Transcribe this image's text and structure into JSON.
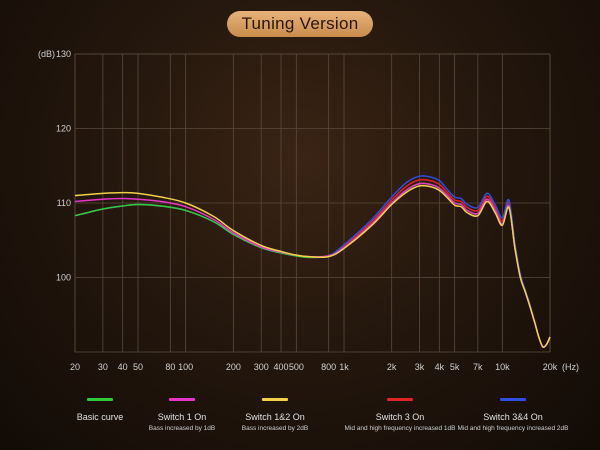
{
  "header": {
    "title": "Tuning Version"
  },
  "chart_data": {
    "type": "line",
    "title": "Tuning Version",
    "ylabel": "(dB)",
    "xlabel": "(Hz)",
    "xscale": "log",
    "xlim": [
      20,
      20000
    ],
    "ylim": [
      90,
      130
    ],
    "grid": true,
    "y_ticks": [
      {
        "value": 130,
        "label": "130"
      },
      {
        "value": 120,
        "label": "120"
      },
      {
        "value": 110,
        "label": "110"
      },
      {
        "value": 100,
        "label": "100"
      }
    ],
    "x_ticks": [
      {
        "value": 20,
        "label": "20"
      },
      {
        "value": 30,
        "label": "30"
      },
      {
        "value": 40,
        "label": "40"
      },
      {
        "value": 50,
        "label": "50"
      },
      {
        "value": 80,
        "label": "80"
      },
      {
        "value": 100,
        "label": "100"
      },
      {
        "value": 200,
        "label": "200"
      },
      {
        "value": 300,
        "label": "300"
      },
      {
        "value": 400,
        "label": "400"
      },
      {
        "value": 500,
        "label": "500"
      },
      {
        "value": 800,
        "label": "800"
      },
      {
        "value": 1000,
        "label": "1k"
      },
      {
        "value": 2000,
        "label": "2k"
      },
      {
        "value": 3000,
        "label": "3k"
      },
      {
        "value": 4000,
        "label": "4k"
      },
      {
        "value": 5000,
        "label": "5k"
      },
      {
        "value": 7000,
        "label": "7k"
      },
      {
        "value": 10000,
        "label": "10k"
      },
      {
        "value": 20000,
        "label": "20k"
      }
    ],
    "x": [
      20,
      30,
      40,
      50,
      70,
      100,
      150,
      200,
      300,
      400,
      500,
      600,
      800,
      1000,
      1500,
      2000,
      2500,
      3000,
      3500,
      4000,
      4500,
      5000,
      5500,
      6000,
      7000,
      8000,
      9000,
      10000,
      11000,
      12000,
      13000,
      14000,
      15000,
      16000,
      17000,
      18000,
      19000,
      20000
    ],
    "series": [
      {
        "name": "Basic curve",
        "color": "#2ecc3a",
        "values": [
          108.3,
          109.2,
          109.6,
          109.8,
          109.6,
          109.0,
          107.5,
          105.8,
          104.0,
          103.3,
          102.9,
          102.7,
          102.9,
          104.0,
          107.2,
          110.0,
          111.8,
          112.6,
          112.5,
          112.0,
          111.0,
          110.0,
          109.8,
          109.0,
          108.6,
          110.5,
          109.0,
          107.2,
          109.6,
          104.0,
          100.0,
          98.0,
          96.0,
          94.0,
          92.0,
          90.7,
          91.0,
          92.0
        ]
      },
      {
        "name": "Switch 1 On",
        "color": "#e536c9",
        "values": [
          110.2,
          110.5,
          110.6,
          110.5,
          110.2,
          109.5,
          107.8,
          106.0,
          104.1,
          103.4,
          103.0,
          102.8,
          102.9,
          104.0,
          107.2,
          110.0,
          111.8,
          112.6,
          112.5,
          112.0,
          111.0,
          110.0,
          109.8,
          109.0,
          108.6,
          110.5,
          109.0,
          107.2,
          109.6,
          104.0,
          100.0,
          98.0,
          96.0,
          94.0,
          92.0,
          90.7,
          91.0,
          92.0
        ]
      },
      {
        "name": "Switch 1&2 On",
        "color": "#f2d04a",
        "values": [
          111.0,
          111.3,
          111.4,
          111.3,
          110.8,
          110.0,
          108.2,
          106.3,
          104.3,
          103.5,
          103.0,
          102.8,
          102.8,
          103.9,
          107.0,
          109.8,
          111.5,
          112.3,
          112.2,
          111.7,
          110.7,
          109.7,
          109.5,
          108.7,
          108.3,
          110.2,
          108.7,
          107.0,
          109.4,
          104.0,
          100.0,
          98.0,
          96.0,
          94.0,
          92.0,
          90.7,
          91.0,
          92.0
        ]
      },
      {
        "name": "Switch 3 On",
        "color": "#e02323",
        "values": [
          108.3,
          109.2,
          109.6,
          109.8,
          109.6,
          109.0,
          107.5,
          105.8,
          104.0,
          103.3,
          102.9,
          102.7,
          102.9,
          104.2,
          107.5,
          110.4,
          112.3,
          113.1,
          113.0,
          112.5,
          111.4,
          110.4,
          110.2,
          109.4,
          109.0,
          110.9,
          109.4,
          107.6,
          110.0,
          104.3,
          100.2,
          98.1,
          96.1,
          94.0,
          92.0,
          90.7,
          91.0,
          92.0
        ]
      },
      {
        "name": "Switch 3&4 On",
        "color": "#2f4de0",
        "values": [
          108.3,
          109.2,
          109.6,
          109.8,
          109.6,
          109.0,
          107.5,
          105.8,
          104.0,
          103.3,
          102.9,
          102.7,
          102.9,
          104.4,
          107.8,
          110.8,
          112.8,
          113.6,
          113.5,
          113.0,
          111.8,
          110.8,
          110.6,
          109.8,
          109.4,
          111.3,
          109.8,
          108.0,
          110.4,
          104.6,
          100.4,
          98.2,
          96.2,
          94.0,
          92.0,
          90.7,
          91.0,
          92.0
        ]
      }
    ]
  },
  "legend": [
    {
      "name": "Basic curve",
      "desc": "",
      "color": "#2ecc3a"
    },
    {
      "name": "Switch 1 On",
      "desc": "Bass increased by 1dB",
      "color": "#e536c9"
    },
    {
      "name": "Switch 1&2 On",
      "desc": "Bass increased by 2dB",
      "color": "#f2d04a"
    },
    {
      "name": "Switch 3 On",
      "desc": "Mid and high frequency increased 1dB",
      "color": "#e02323"
    },
    {
      "name": "Switch 3&4 On",
      "desc": "Mid and high frequency increased 2dB",
      "color": "#2f4de0"
    }
  ]
}
